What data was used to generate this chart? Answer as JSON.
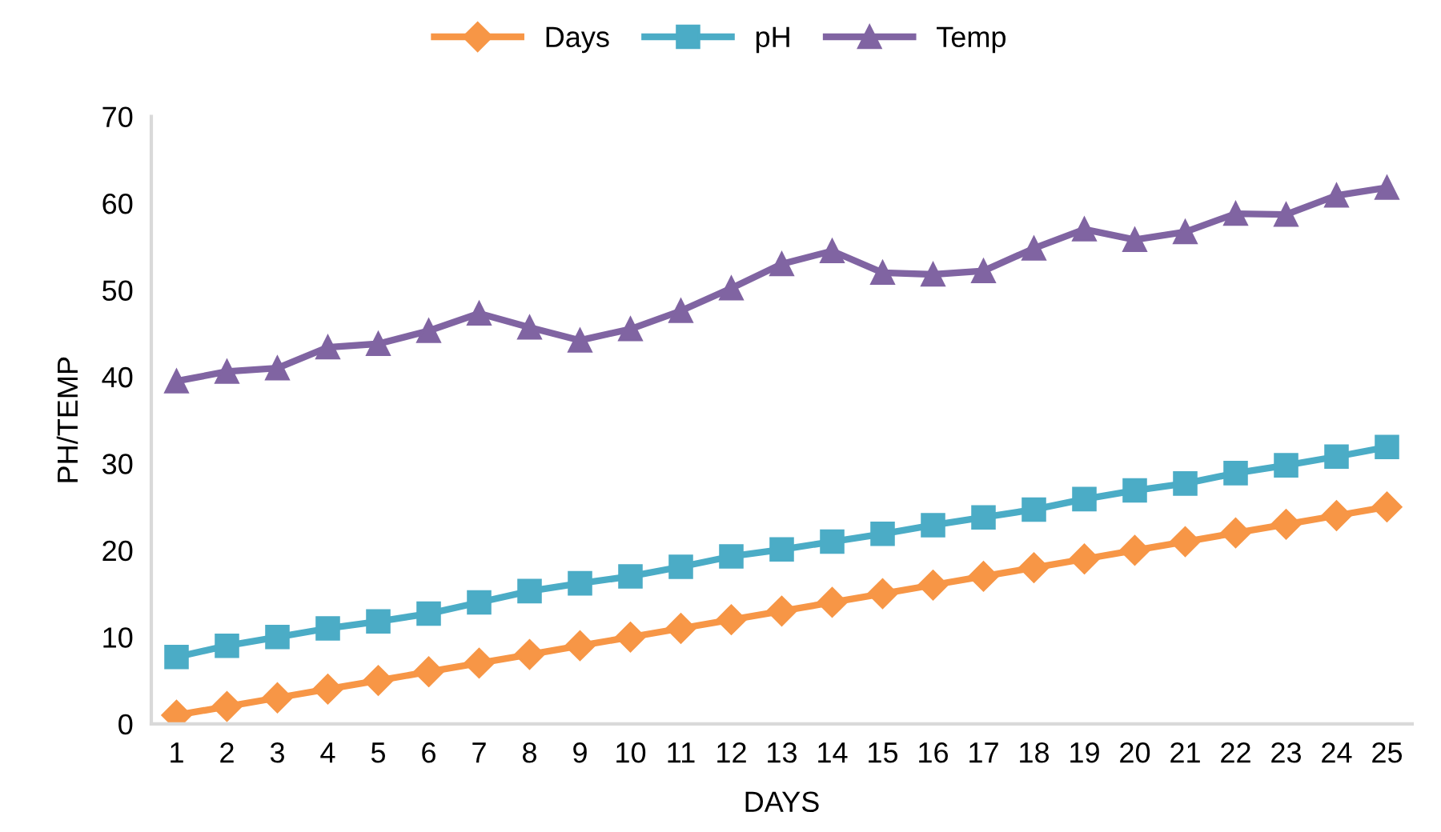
{
  "chart_data": {
    "type": "line",
    "xlabel": "DAYS",
    "ylabel": "PH/TEMP",
    "categories": [
      "1",
      "2",
      "3",
      "4",
      "5",
      "6",
      "7",
      "8",
      "9",
      "10",
      "11",
      "12",
      "13",
      "14",
      "15",
      "16",
      "17",
      "18",
      "19",
      "20",
      "21",
      "22",
      "23",
      "24",
      "25"
    ],
    "series": [
      {
        "name": "Days",
        "color": "#f79646",
        "marker": "diamond",
        "values": [
          1,
          2,
          3,
          4,
          5,
          6,
          7,
          8,
          9,
          10,
          11,
          12,
          13,
          14,
          15,
          16,
          17,
          18,
          19,
          20,
          21,
          22,
          23,
          24,
          25
        ]
      },
      {
        "name": "pH",
        "color": "#4bacc6",
        "marker": "square",
        "values": [
          7.7,
          9,
          10,
          11,
          11.8,
          12.7,
          14,
          15.3,
          16.2,
          17,
          18.1,
          19.3,
          20.1,
          21,
          21.9,
          22.9,
          23.8,
          24.7,
          25.9,
          26.9,
          27.7,
          28.9,
          29.8,
          30.8,
          31.9
        ]
      },
      {
        "name": "Temp",
        "color": "#8064a2",
        "marker": "triangle",
        "values": [
          39.5,
          40.6,
          41,
          43.4,
          43.8,
          45.3,
          47.3,
          45.7,
          44.2,
          45.5,
          47.6,
          50.2,
          53.0,
          54.5,
          52.0,
          51.8,
          52.2,
          54.8,
          57.0,
          55.8,
          56.7,
          58.8,
          58.7,
          60.9,
          61.8
        ]
      }
    ],
    "ylim": [
      0,
      70
    ],
    "yticks": [
      0,
      10,
      20,
      30,
      40,
      50,
      60,
      70
    ],
    "grid": false,
    "legend": "top",
    "line_style": "solid"
  }
}
